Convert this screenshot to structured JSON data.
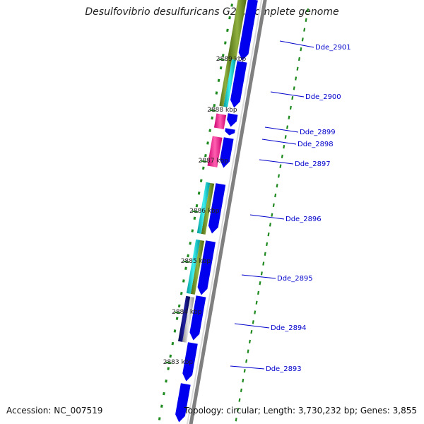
{
  "map": {
    "title": "Desulfovibrio desulfuricans G20, complete genome",
    "accession_label": "Accession:",
    "accession": "NC_007519",
    "topology_label": "Topology:",
    "topology": "circular",
    "length_label": "Length:",
    "length": "3,730,232 bp",
    "genes_label": "Genes:",
    "genes": "3,855"
  },
  "colors": {
    "backbone": "#808080",
    "gene_forward": "#0000ee",
    "gene_label": "#0000cc",
    "gc_skew": "#1f8a1f",
    "track_olive": "#6b8e23",
    "track_cyan": "#00cccc",
    "track_pink": "#ff1493",
    "track_navy": "#000080",
    "track_gray": "#c0c0c0"
  },
  "ticks": [
    "2889 kbp",
    "2888 kbp",
    "2887 kbp",
    "2886 kbp",
    "2885 kbp",
    "2884 kbp",
    "2883 kbp"
  ],
  "gene_labels": [
    "Dde_2901",
    "Dde_2900",
    "Dde_2899",
    "Dde_2898",
    "Dde_2897",
    "Dde_2896",
    "Dde_2895",
    "Dde_2894",
    "Dde_2893"
  ]
}
